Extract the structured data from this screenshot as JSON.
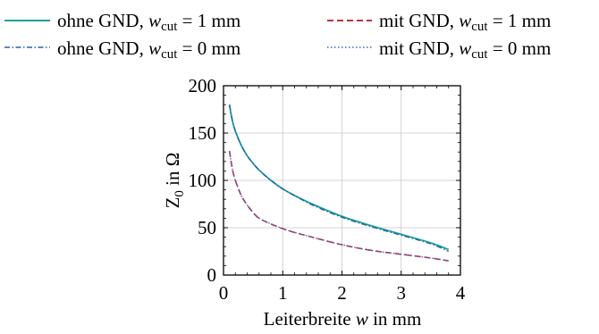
{
  "chart_data": {
    "type": "line",
    "title": "",
    "xlabel": "Leiterbreite w in mm",
    "ylabel": "Z0 in Ω",
    "xlim": [
      0,
      4
    ],
    "ylim": [
      0,
      200
    ],
    "xticks": [
      0,
      1,
      2,
      3,
      4
    ],
    "yticks": [
      0,
      50,
      100,
      150,
      200
    ],
    "grid": true,
    "legend_position": "top",
    "x": [
      0.1,
      0.15,
      0.2,
      0.3,
      0.4,
      0.5,
      0.6,
      0.8,
      1.0,
      1.2,
      1.5,
      2.0,
      2.5,
      3.0,
      3.5,
      3.8
    ],
    "series": [
      {
        "name": "ohne GND, w_cut = 1 mm",
        "color": "#17A398",
        "dash": "solid",
        "values": [
          180,
          163,
          152,
          137,
          126,
          118,
          111,
          100,
          91,
          84,
          75,
          62,
          52,
          43,
          34,
          27
        ]
      },
      {
        "name": "ohne GND, w_cut = 0 mm",
        "color": "#2B5FAE",
        "dash": "dashdot",
        "values": [
          180,
          163,
          152,
          137,
          126,
          118,
          111,
          100,
          91,
          84,
          74,
          61,
          51,
          42,
          33,
          25
        ]
      },
      {
        "name": "mit GND, w_cut = 1 mm",
        "color": "#C0303C",
        "dash": "dashed",
        "values": [
          131,
          112,
          100,
          84,
          74,
          66,
          60,
          54,
          49,
          45,
          40,
          32,
          26,
          22,
          18,
          15
        ]
      },
      {
        "name": "mit GND, w_cut = 0 mm",
        "color": "#3F62C8",
        "dash": "dotted",
        "values": [
          131,
          112,
          100,
          84,
          74,
          66,
          60,
          54,
          49,
          45,
          40,
          32,
          26,
          22,
          18,
          15
        ]
      }
    ]
  }
}
